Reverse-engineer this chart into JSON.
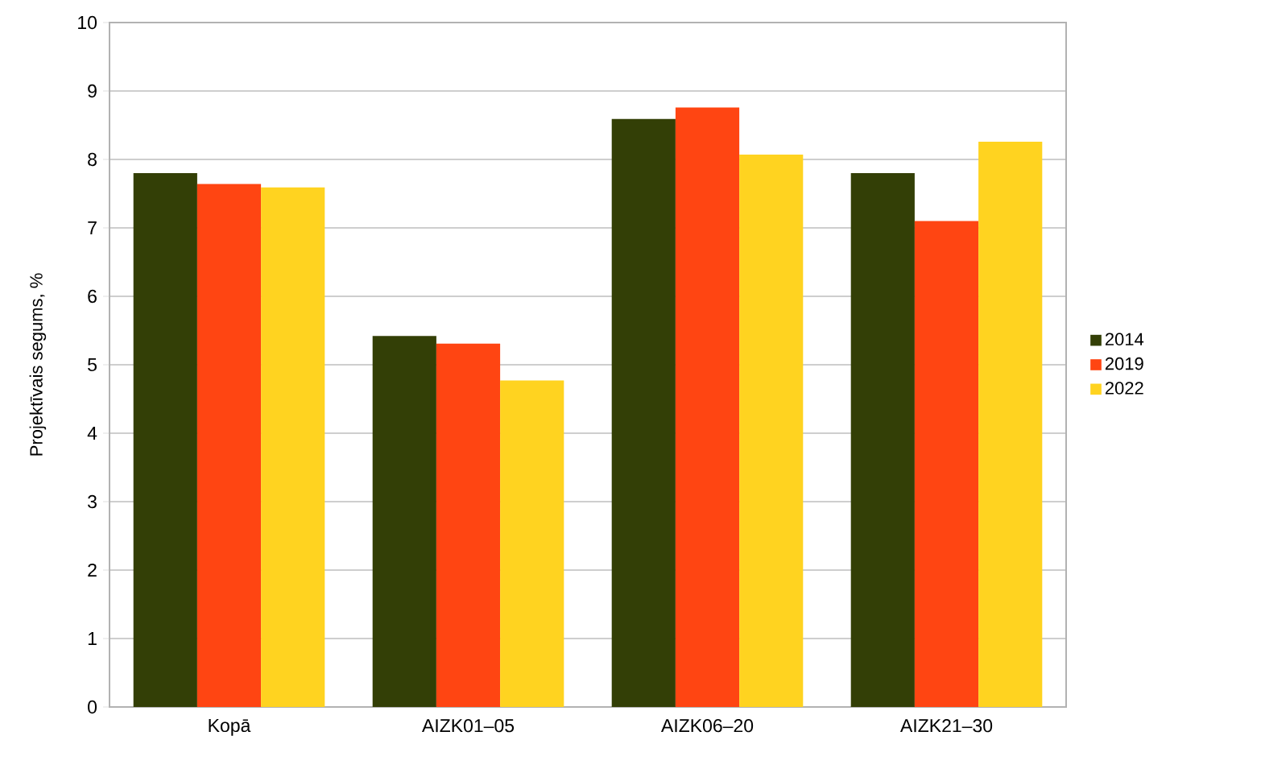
{
  "chart_data": {
    "type": "bar",
    "ylabel": "Projektīvais segums, %",
    "categories": [
      "Kopā",
      "AIZK01–05",
      "AIZK06–20",
      "AIZK21–30"
    ],
    "series": [
      {
        "name": "2014",
        "color": "#333f06",
        "values": [
          7.8,
          5.42,
          8.59,
          7.8
        ]
      },
      {
        "name": "2019",
        "color": "#ff4512",
        "values": [
          7.64,
          5.31,
          8.76,
          7.1
        ]
      },
      {
        "name": "2022",
        "color": "#ffd320",
        "values": [
          7.59,
          4.77,
          8.07,
          8.26
        ]
      }
    ],
    "ylim": [
      0,
      10
    ],
    "yticks": [
      0,
      1,
      2,
      3,
      4,
      5,
      6,
      7,
      8,
      9,
      10
    ],
    "grid": "y",
    "legend": "right"
  }
}
